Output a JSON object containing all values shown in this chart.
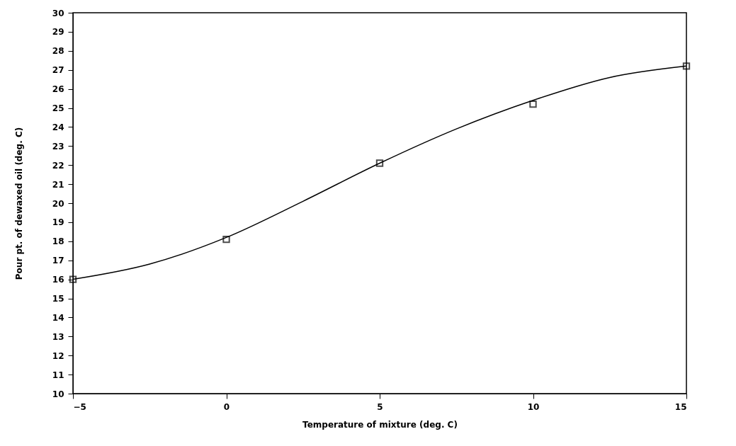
{
  "chart_data": {
    "type": "scatter",
    "xlabel": "Temperature of mixture (deg. C)",
    "ylabel": "Pour pt. of dewaxed oil (deg. C)",
    "xlim": [
      -5,
      15
    ],
    "xticks": [
      -5,
      0,
      5,
      10,
      15
    ],
    "ylim": [
      10,
      30
    ],
    "yticks": [
      10,
      11,
      12,
      13,
      14,
      15,
      16,
      17,
      18,
      19,
      20,
      21,
      22,
      23,
      24,
      25,
      26,
      27,
      28,
      29,
      30
    ],
    "grid": false,
    "series": [
      {
        "type": "scatter",
        "marker": "square",
        "color": "#000000",
        "x": [
          -5,
          0,
          5,
          10,
          15
        ],
        "values": [
          16,
          18.1,
          22.1,
          25.2,
          27.2
        ]
      },
      {
        "type": "line",
        "color": "#000000",
        "line_style": "solid",
        "x": [
          -5,
          -2.5,
          0,
          2.5,
          5,
          7.5,
          10,
          12.5,
          15
        ],
        "values": [
          16,
          16.8,
          18.2,
          20.1,
          22.1,
          23.9,
          25.4,
          26.6,
          27.2
        ]
      }
    ]
  }
}
